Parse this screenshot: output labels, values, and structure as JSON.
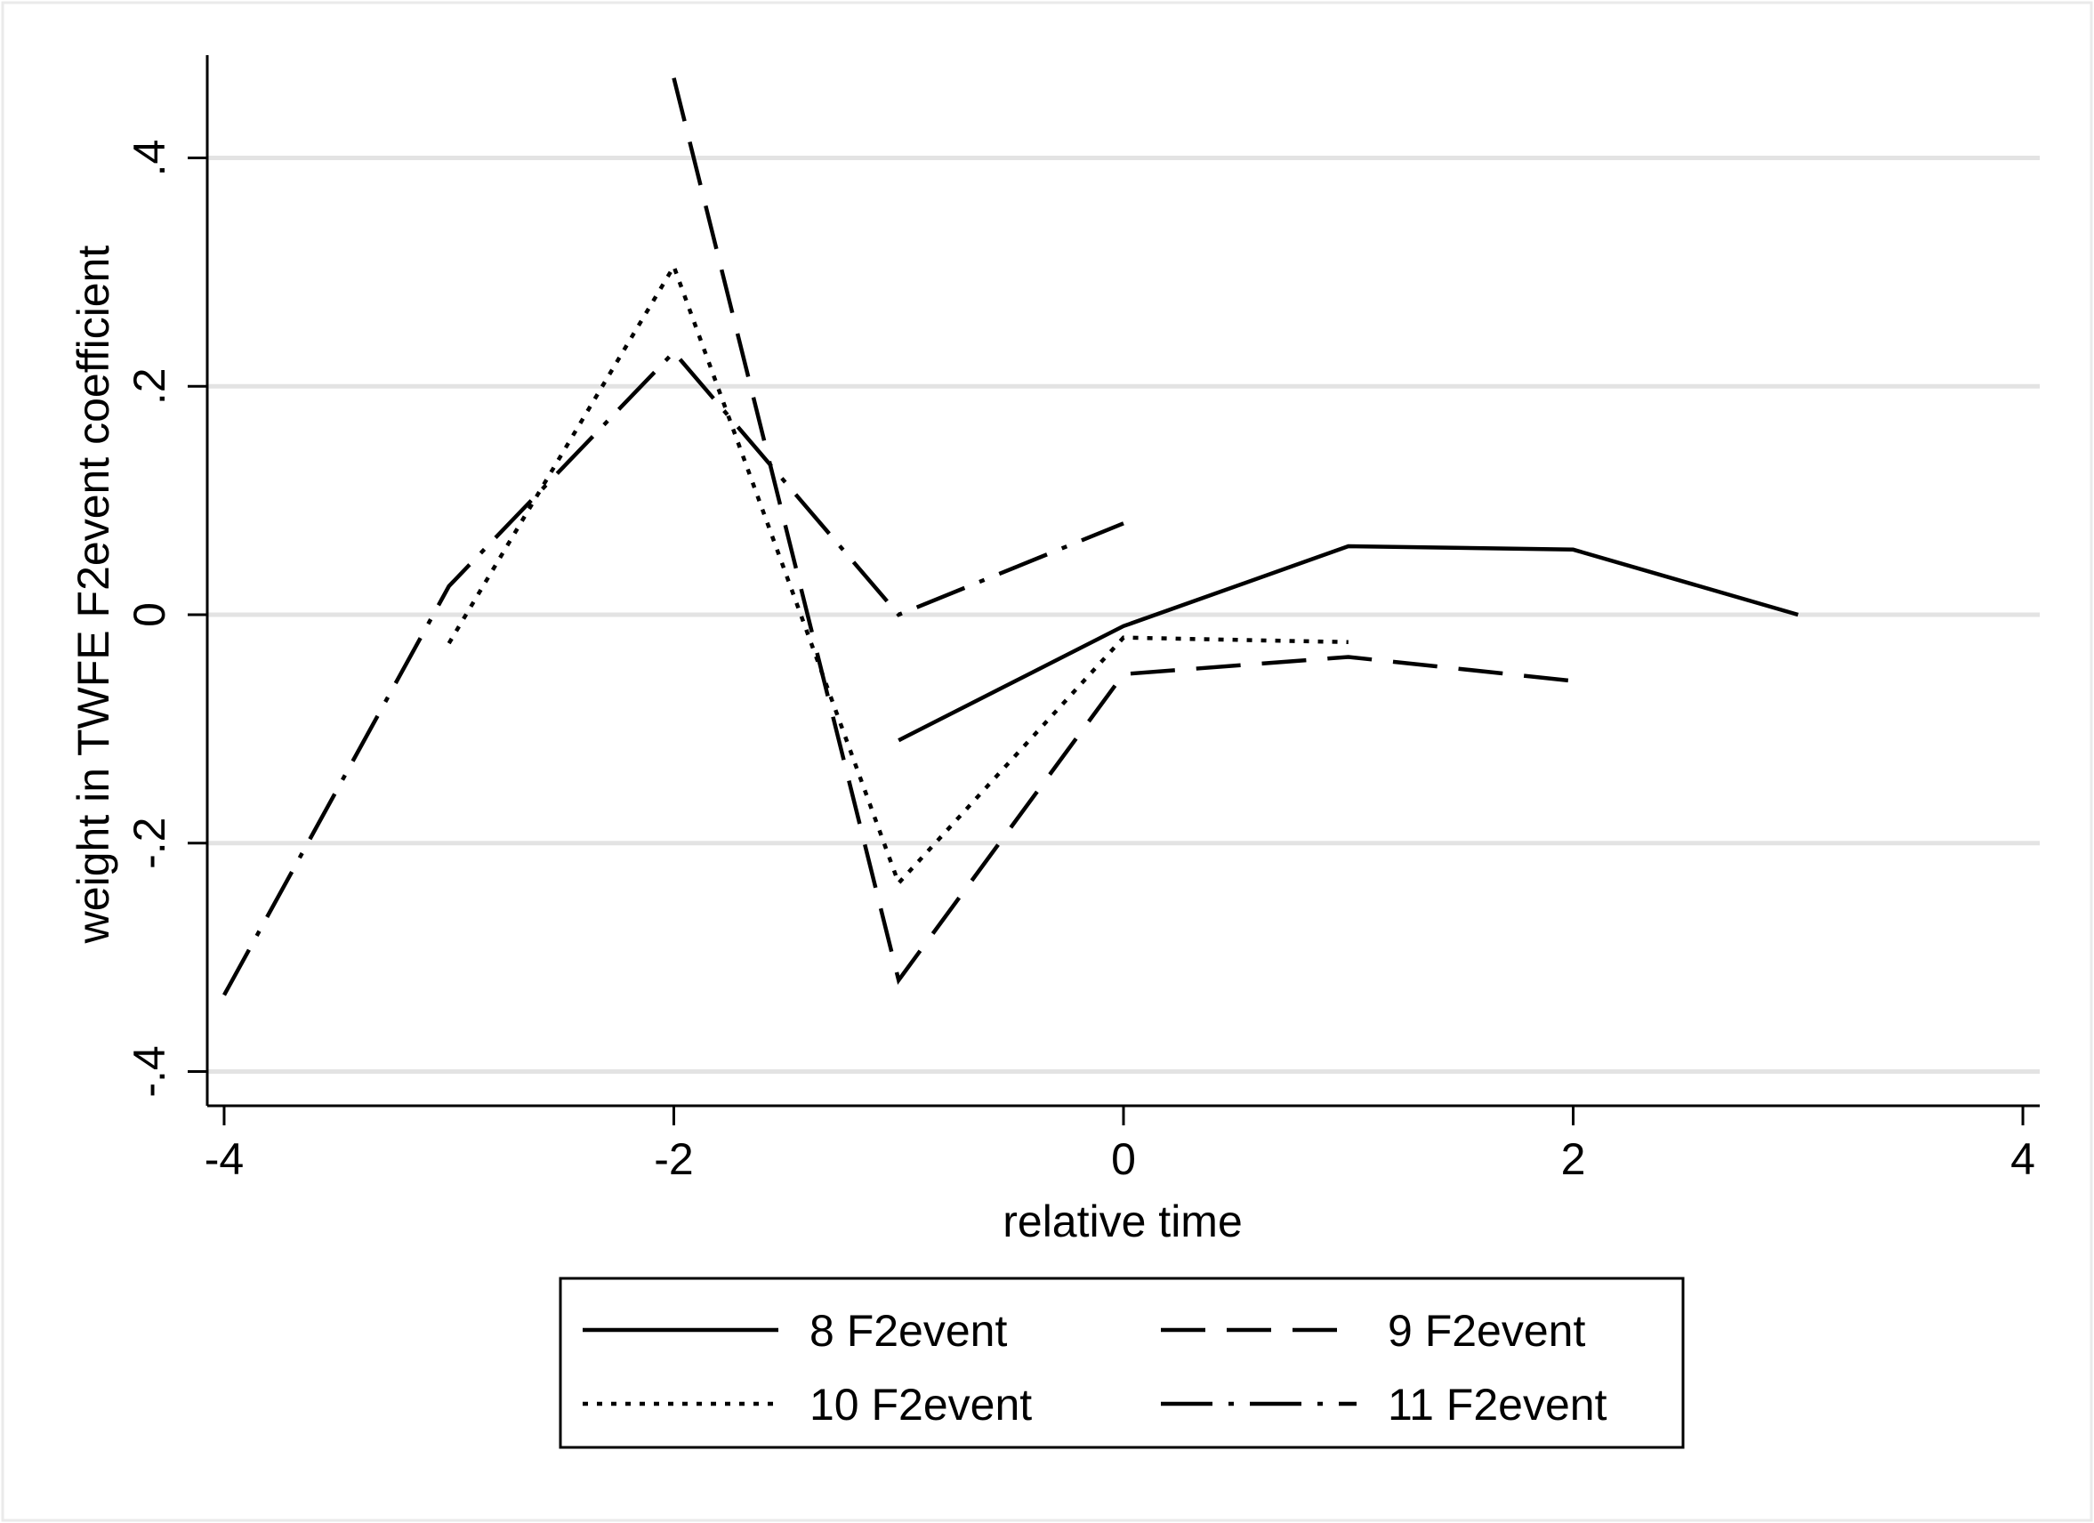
{
  "chart_data": {
    "type": "line",
    "xlabel": "relative time",
    "ylabel": "weight in TWFE F2event coefficient",
    "xlim": [
      -4.075,
      4.075
    ],
    "ylim": [
      -0.43,
      0.49
    ],
    "xticks": [
      -4,
      -2,
      0,
      2,
      4
    ],
    "xtick_labels": [
      "-4",
      "-2",
      "0",
      "2",
      "4"
    ],
    "yticks": [
      -0.4,
      -0.2,
      0,
      0.2,
      0.4
    ],
    "ytick_labels": [
      "-.4",
      "-.2",
      "0",
      ".2",
      ".4"
    ],
    "grid": true,
    "legend_position": "bottom",
    "series": [
      {
        "name": "8 F2event",
        "style": "solid",
        "x": [
          -1,
          0,
          1,
          2,
          3
        ],
        "y": [
          -0.11,
          -0.01,
          0.06,
          0.057,
          0.0
        ]
      },
      {
        "name": "9 F2event",
        "style": "dash",
        "x": [
          -2,
          -1,
          0,
          1,
          2
        ],
        "y": [
          0.47,
          -0.32,
          -0.052,
          -0.037,
          -0.058
        ]
      },
      {
        "name": "10 F2event",
        "style": "dot",
        "x": [
          -3,
          -2,
          -1,
          0,
          1
        ],
        "y": [
          -0.025,
          0.305,
          -0.235,
          -0.02,
          -0.024
        ]
      },
      {
        "name": "11 F2event",
        "style": "dashdot",
        "x": [
          -4,
          -3,
          -2,
          -1,
          0
        ],
        "y": [
          -0.333,
          0.025,
          0.23,
          0.0,
          0.08
        ]
      }
    ]
  }
}
